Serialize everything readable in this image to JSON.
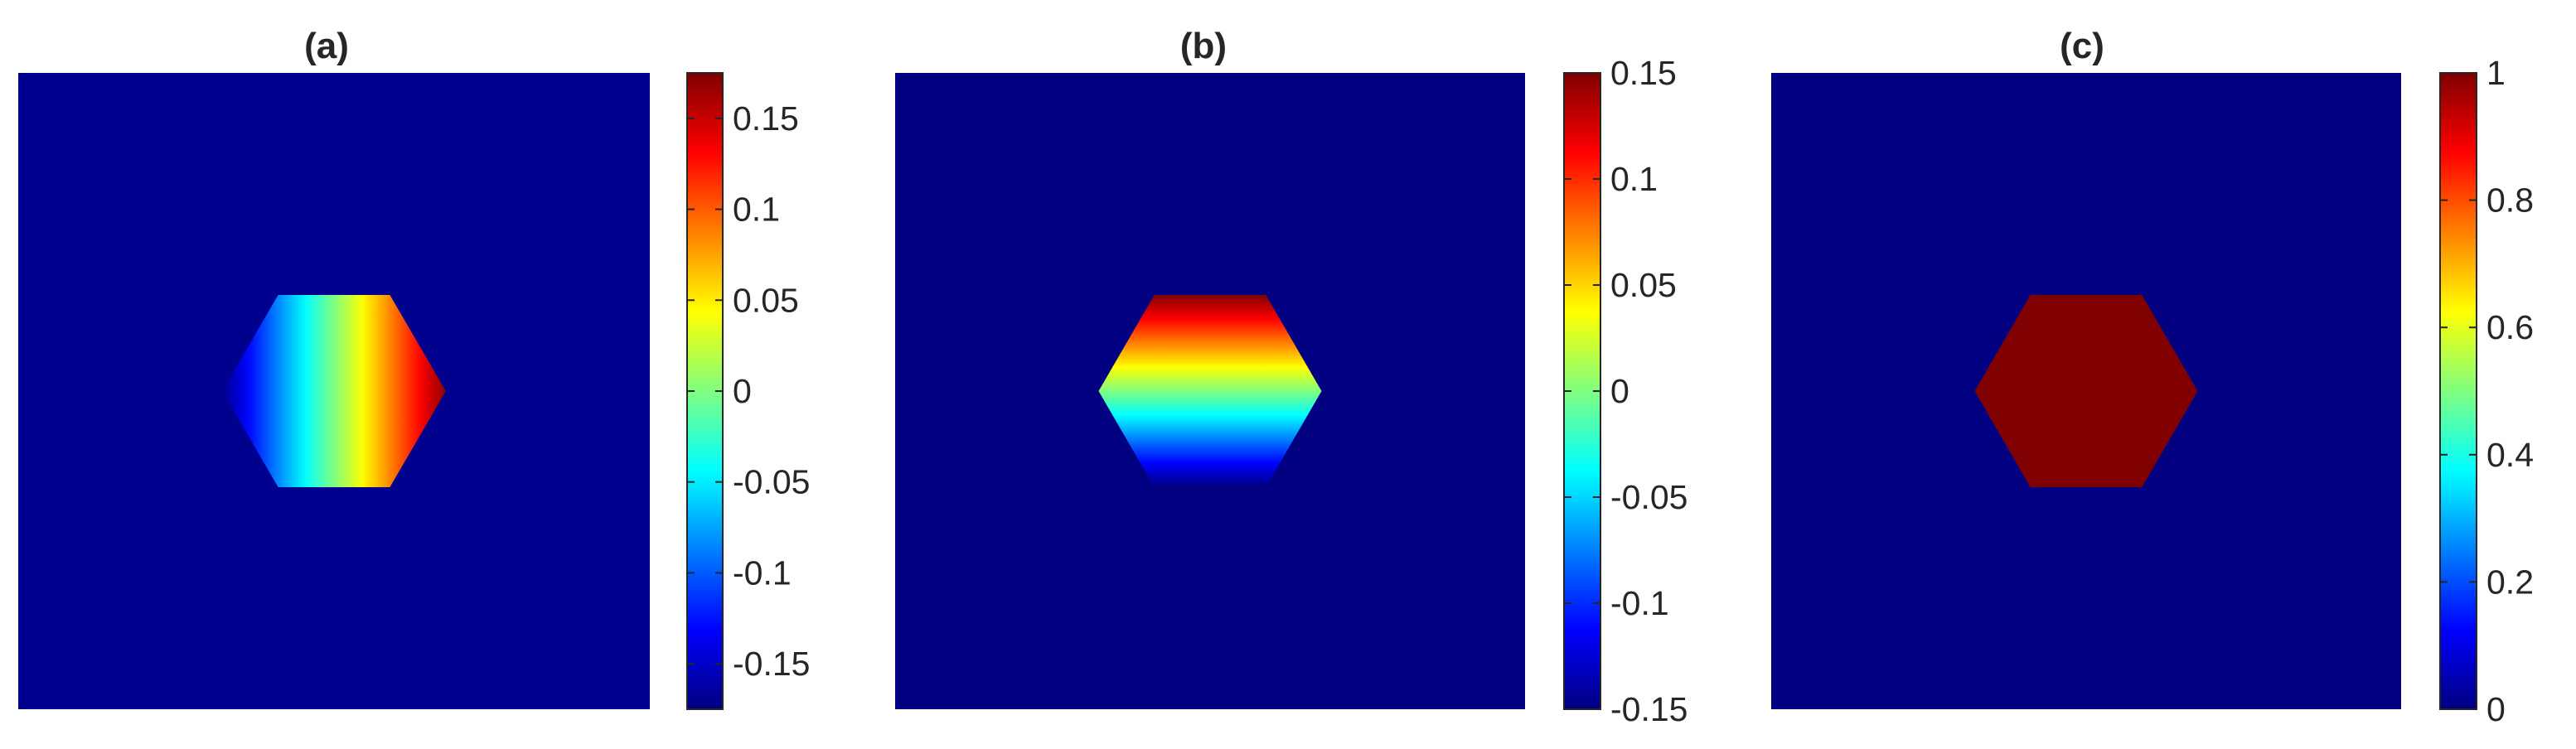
{
  "chart_data": [
    {
      "type": "heatmap",
      "title": "(a)",
      "shape": "hexagon",
      "gradient_direction": "horizontal",
      "background_value": -0.17,
      "field_range": [
        -0.17,
        0.17
      ],
      "colorbar": {
        "colormap": "jet",
        "range": [
          -0.175,
          0.175
        ],
        "ticks": [
          -0.15,
          -0.1,
          -0.05,
          0,
          0.05,
          0.1,
          0.15
        ],
        "tick_labels": [
          "-0.15",
          "-0.1",
          "-0.05",
          "0",
          "0.05",
          "0.1",
          "0.15"
        ]
      }
    },
    {
      "type": "heatmap",
      "title": "(b)",
      "shape": "hexagon",
      "gradient_direction": "vertical",
      "background_value": -0.15,
      "field_range": [
        -0.15,
        0.15
      ],
      "colorbar": {
        "colormap": "jet",
        "range": [
          -0.15,
          0.15
        ],
        "ticks": [
          -0.15,
          -0.1,
          -0.05,
          0,
          0.05,
          0.1,
          0.15
        ],
        "tick_labels": [
          "-0.15",
          "-0.1",
          "-0.05",
          "0",
          "0.05",
          "0.1",
          "0.15"
        ]
      }
    },
    {
      "type": "heatmap",
      "title": "(c)",
      "shape": "hexagon",
      "gradient_direction": "uniform",
      "background_value": 0,
      "field_range": [
        1,
        1
      ],
      "colorbar": {
        "colormap": "jet",
        "range": [
          0,
          1
        ],
        "ticks": [
          0,
          0.2,
          0.4,
          0.6,
          0.8,
          1
        ],
        "tick_labels": [
          "0",
          "0.2",
          "0.4",
          "0.6",
          "0.8",
          "1"
        ]
      }
    }
  ]
}
